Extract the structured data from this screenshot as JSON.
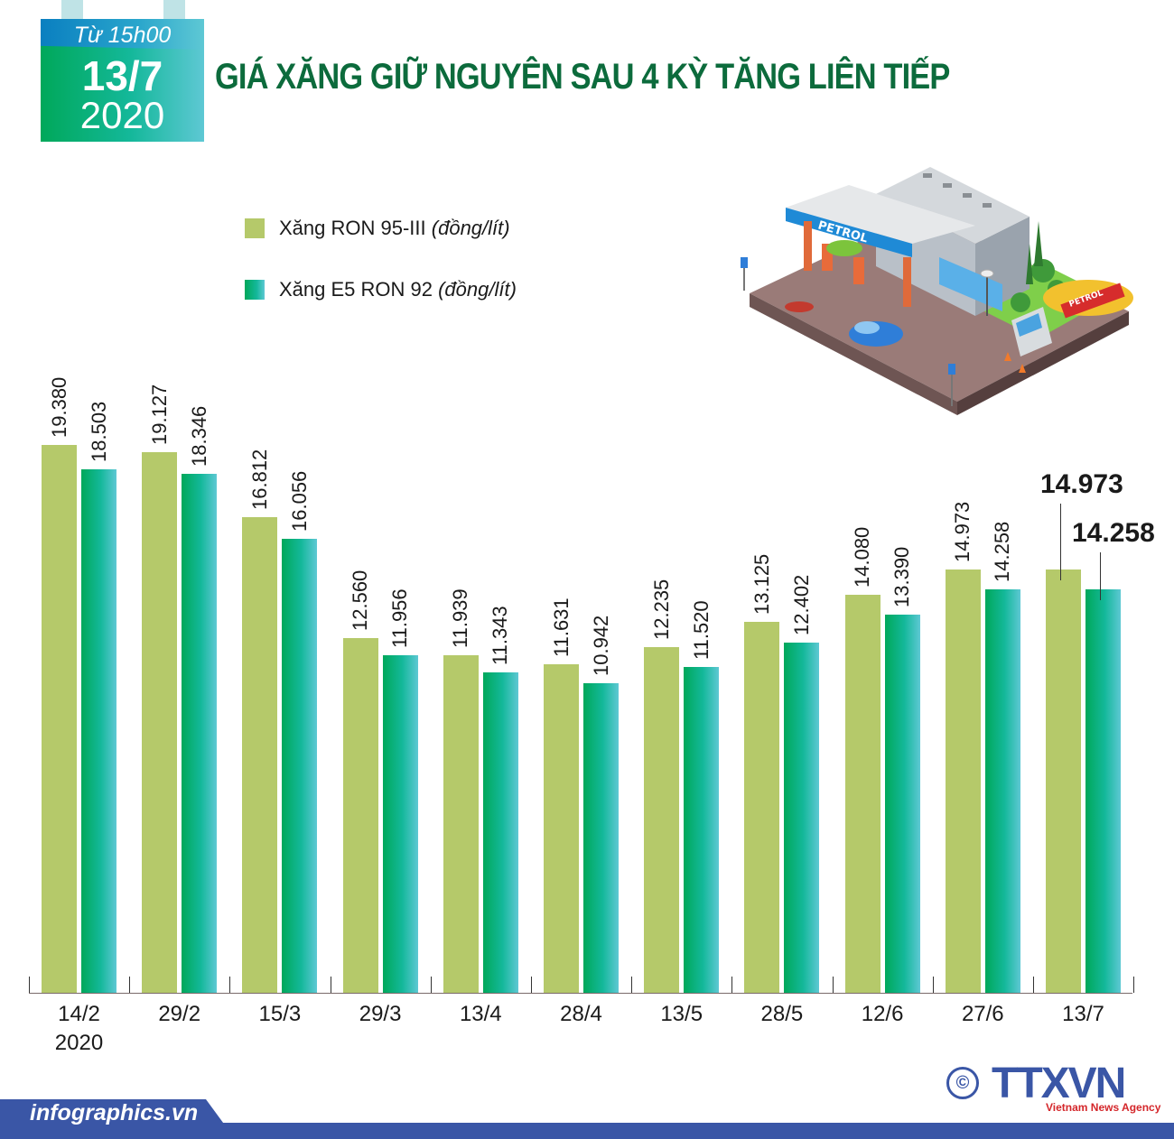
{
  "header": {
    "badge_time": "Từ 15h00",
    "badge_date": "13/7",
    "badge_year": "2020",
    "title": "GIÁ XĂNG GIỮ NGUYÊN SAU 4 KỲ TĂNG LIÊN TIẾP"
  },
  "legend": {
    "series1_name": "Xăng RON 95-III",
    "series1_unit": "(đồng/lít)",
    "series2_name": "Xăng E5 RON 92",
    "series2_unit": "(đồng/lít)"
  },
  "illustration": {
    "icon": "petrol-station-illustration",
    "sign_text": "PETROL",
    "tanker_text": "PETROL"
  },
  "colors": {
    "ron95": "#b5c96a",
    "e5_start": "#00a85a",
    "e5_end": "#5ec8d4",
    "title": "#0c6b3c",
    "footer": "#3a56a6"
  },
  "chart_data": {
    "type": "bar",
    "title": "GIÁ XĂNG GIỮ NGUYÊN SAU 4 KỲ TĂNG LIÊN TIẾP",
    "xlabel": "",
    "ylabel": "đồng/lít",
    "categories": [
      "14/2",
      "29/2",
      "15/3",
      "29/3",
      "13/4",
      "28/4",
      "13/5",
      "28/5",
      "12/6",
      "27/6",
      "13/7"
    ],
    "category_sublabels": [
      "2020",
      "",
      "",
      "",
      "",
      "",
      "",
      "",
      "",
      "",
      ""
    ],
    "series": [
      {
        "name": "Xăng RON 95-III (đồng/lít)",
        "color": "#b5c96a",
        "values": [
          19380,
          19127,
          16812,
          12560,
          11939,
          11631,
          12235,
          13125,
          14080,
          14973,
          14973
        ],
        "labels": [
          "19.380",
          "19.127",
          "16.812",
          "12.560",
          "11.939",
          "11.631",
          "12.235",
          "13.125",
          "14.080",
          "14.973",
          "14.973"
        ]
      },
      {
        "name": "Xăng E5 RON 92 (đồng/lít)",
        "color": "#14b89a",
        "values": [
          18503,
          18346,
          16056,
          11956,
          11343,
          10942,
          11520,
          12402,
          13390,
          14258,
          14258
        ],
        "labels": [
          "18.503",
          "18.346",
          "16.056",
          "11.956",
          "11.343",
          "10.942",
          "11.520",
          "12.402",
          "13.390",
          "14.258",
          "14.258"
        ]
      }
    ],
    "ylim": [
      0,
      20000
    ],
    "grid": false,
    "legend_position": "top-left",
    "annotations": [
      "14.973",
      "14.258"
    ]
  },
  "footer": {
    "brand": "infographics.vn",
    "copyright_symbol": "©",
    "agency": "TTXVN",
    "agency_sub": "Vietnam News Agency"
  }
}
